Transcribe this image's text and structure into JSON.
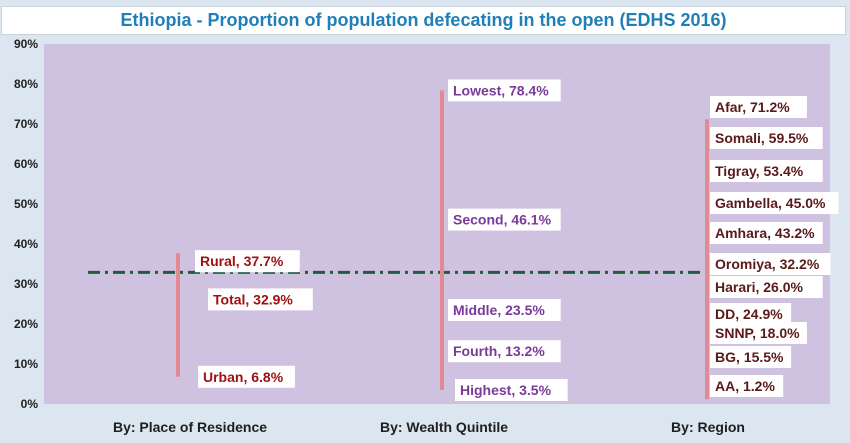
{
  "chart_data": {
    "type": "scatter",
    "title": "Ethiopia - Proportion of population defecating in the open (EDHS 2016)",
    "ylim": [
      0,
      90
    ],
    "yticks": [
      "0%",
      "10%",
      "20%",
      "30%",
      "40%",
      "50%",
      "60%",
      "70%",
      "80%",
      "90%"
    ],
    "categories": [
      "By: Place of Residence",
      "By: Wealth Quintile",
      "By: Region"
    ],
    "reference_line": {
      "label": "Total, 32.9%",
      "value": 32.9
    },
    "groups": [
      {
        "category": "By: Place of Residence",
        "points": [
          {
            "label": "Rural, 37.7%",
            "value": 37.7
          },
          {
            "label": "Urban, 6.8%",
            "value": 6.8
          }
        ]
      },
      {
        "category": "By: Wealth Quintile",
        "points": [
          {
            "label": "Lowest, 78.4%",
            "value": 78.4
          },
          {
            "label": "Second, 46.1%",
            "value": 46.1
          },
          {
            "label": "Middle, 23.5%",
            "value": 23.5
          },
          {
            "label": "Fourth, 13.2%",
            "value": 13.2
          },
          {
            "label": "Highest, 3.5%",
            "value": 3.5
          }
        ]
      },
      {
        "category": "By: Region",
        "points": [
          {
            "label": "Afar, 71.2%",
            "value": 71.2
          },
          {
            "label": "Somali, 59.5%",
            "value": 59.5
          },
          {
            "label": "Tigray, 53.4%",
            "value": 53.4
          },
          {
            "label": "Gambella, 45.0%",
            "value": 45.0
          },
          {
            "label": "Amhara, 43.2%",
            "value": 43.2
          },
          {
            "label": "Oromiya, 32.2%",
            "value": 32.2
          },
          {
            "label": "Harari, 26.0%",
            "value": 26.0
          },
          {
            "label": "DD, 24.9%",
            "value": 24.9
          },
          {
            "label": "SNNP, 18.0%",
            "value": 18.0
          },
          {
            "label": "BG, 15.5%",
            "value": 15.5
          },
          {
            "label": "AA, 1.2%",
            "value": 1.2
          }
        ]
      }
    ]
  },
  "colors": {
    "title": "#1f7fb8",
    "plot_background": "#cfc2e0",
    "page_background": "#dbe6f1",
    "range_line": "#e08a94",
    "reference_line": "#1e5e3a",
    "residence_labels": "#a01010",
    "wealth_labels": "#7a3a9a",
    "region_labels": "#5a1a1a"
  }
}
